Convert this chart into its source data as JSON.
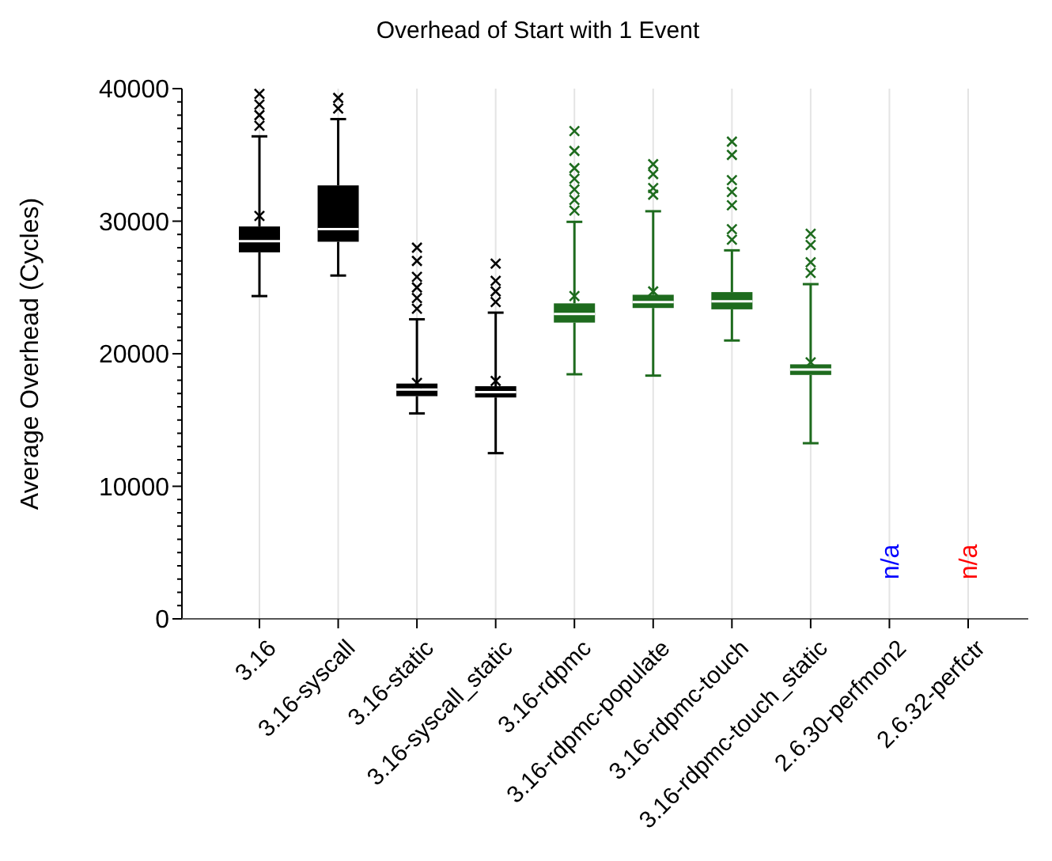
{
  "chart_data": {
    "type": "box",
    "title": "Overhead of Start with 1 Event",
    "ylabel": "Average Overhead (Cycles)",
    "categories": [
      "3.16",
      "3.16-syscall",
      "3.16-static",
      "3.16-syscall_static",
      "3.16-rdpmc",
      "3.16-rdpmc-populate",
      "3.16-rdpmc-touch",
      "3.16-rdpmc-touch_static",
      "2.6.30-perfmon2",
      "2.6.32-perfctr"
    ],
    "colors": [
      "#000000",
      "#000000",
      "#000000",
      "#000000",
      "#1e6b1e",
      "#1e6b1e",
      "#1e6b1e",
      "#1e6b1e",
      "#0000ff",
      "#ff0000"
    ],
    "boxes": [
      {
        "low": 24350,
        "q1": 27650,
        "median": 28500,
        "q3": 29600,
        "high": 36400,
        "mean": 30400,
        "outliers": [
          37200,
          38000,
          38800,
          39600
        ]
      },
      {
        "low": 25900,
        "q1": 28450,
        "median": 29400,
        "q3": 32700,
        "high": 37700,
        "outliers": [
          38500,
          39300
        ]
      },
      {
        "low": 15500,
        "q1": 16800,
        "median": 17300,
        "q3": 17750,
        "high": 22600,
        "mean": 17800,
        "outliers": [
          23400,
          24200,
          25000,
          25800,
          27000,
          28000
        ]
      },
      {
        "low": 12500,
        "q1": 16700,
        "median": 17100,
        "q3": 17550,
        "high": 23100,
        "mean": 17950,
        "outliers": [
          23900,
          24700,
          25500,
          26800
        ]
      },
      {
        "low": 18450,
        "q1": 22350,
        "median": 23000,
        "q3": 23800,
        "high": 29950,
        "mean": 24350,
        "outliers": [
          30800,
          31600,
          32400,
          33200,
          34000,
          35300,
          36800
        ]
      },
      {
        "low": 18350,
        "q1": 23450,
        "median": 23900,
        "q3": 24450,
        "high": 30750,
        "mean": 24700,
        "outliers": [
          32000,
          32500,
          33550,
          34300
        ]
      },
      {
        "low": 21000,
        "q1": 23350,
        "median": 23950,
        "q3": 24650,
        "high": 27800,
        "outliers": [
          28600,
          29400,
          31200,
          32200,
          33100,
          35000,
          36000
        ]
      },
      {
        "low": 13250,
        "q1": 18400,
        "median": 18800,
        "q3": 19200,
        "high": 25250,
        "mean": 19350,
        "outliers": [
          26100,
          26900,
          28200,
          29050
        ]
      },
      null,
      null
    ],
    "annotations": [
      "n/a",
      "n/a"
    ],
    "ylim": [
      0,
      40000
    ],
    "yticks": [
      0,
      {
        "value": 1000,
        "label": null
      },
      {
        "value": 2000,
        "label": null
      },
      {
        "value": 3000,
        "label": null
      },
      {
        "value": 4000,
        "label": null
      },
      {
        "value": 5000,
        "label": null
      },
      {
        "value": 6000,
        "label": null
      },
      {
        "value": 7000,
        "label": null
      },
      {
        "value": 8000,
        "label": null
      },
      {
        "value": 9000,
        "label": null
      },
      10000,
      {
        "value": 11000,
        "label": null
      },
      {
        "value": 12000,
        "label": null
      },
      {
        "value": 13000,
        "label": null
      },
      {
        "value": 14000,
        "label": null
      },
      {
        "value": 15000,
        "label": null
      },
      {
        "value": 16000,
        "label": null
      },
      {
        "value": 17000,
        "label": null
      },
      {
        "value": 18000,
        "label": null
      },
      {
        "value": 19000,
        "label": null
      },
      20000,
      {
        "value": 21000,
        "label": null
      },
      {
        "value": 22000,
        "label": null
      },
      {
        "value": 23000,
        "label": null
      },
      {
        "value": 24000,
        "label": null
      },
      {
        "value": 25000,
        "label": null
      },
      {
        "value": 26000,
        "label": null
      },
      {
        "value": 27000,
        "label": null
      },
      {
        "value": 28000,
        "label": null
      },
      {
        "value": 29000,
        "label": null
      },
      30000,
      {
        "value": 31000,
        "label": null
      },
      {
        "value": 32000,
        "label": null
      },
      {
        "value": 33000,
        "label": null
      },
      {
        "value": 34000,
        "label": null
      },
      {
        "value": 35000,
        "label": null
      },
      {
        "value": 36000,
        "label": null
      },
      {
        "value": 37000,
        "label": null
      },
      {
        "value": 38000,
        "label": null
      },
      {
        "value": 39000,
        "label": null
      },
      40000
    ],
    "grid": "x"
  }
}
